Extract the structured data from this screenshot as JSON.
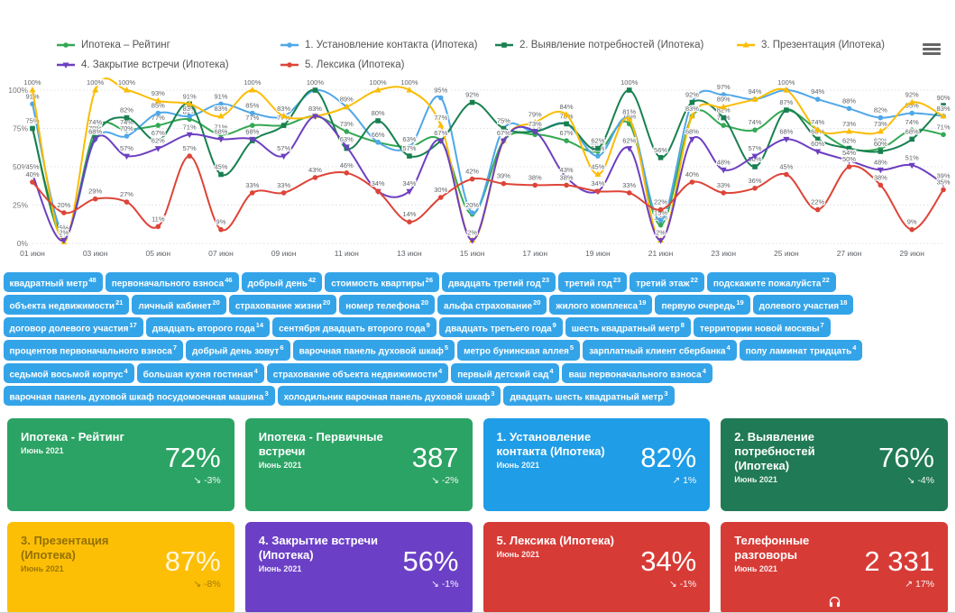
{
  "header": {
    "menu_icon": "hamburger-menu"
  },
  "chart_data": {
    "type": "line",
    "title": "",
    "xlabel": "",
    "ylabel": "",
    "ylim": [
      0,
      100
    ],
    "grid": true,
    "legend_position": "top",
    "y_ticks": [
      "0%",
      "25%",
      "50%",
      "75%",
      "100%"
    ],
    "x": [
      1,
      2,
      3,
      4,
      5,
      6,
      7,
      8,
      9,
      10,
      11,
      12,
      13,
      14,
      15,
      16,
      17,
      18,
      19,
      20,
      21,
      22,
      23,
      24,
      25,
      26,
      27,
      28,
      29,
      30
    ],
    "x_tick_labels": [
      "01 июн",
      "03 июн",
      "05 июн",
      "07 июн",
      "09 июн",
      "11 июн",
      "13 июн",
      "15 июн",
      "17 июн",
      "19 июн",
      "21 июн",
      "23 июн",
      "25 июн",
      "27 июн",
      "29 июн"
    ],
    "series": [
      {
        "id": "rating",
        "name": "Ипотека – Рейтинг",
        "color": "#34a853",
        "marker": "circle",
        "values": [
          75,
          3,
          74,
          74,
          77,
          81,
          71,
          77,
          77,
          83,
          73,
          66,
          63,
          67,
          19,
          67,
          71,
          67,
          60,
          78,
          12,
          83,
          77,
          74,
          87,
          74,
          62,
          62,
          74,
          71
        ]
      },
      {
        "id": "contact",
        "name": "1. Установление контакта (Ипотека)",
        "color": "#4fa7e8",
        "marker": "circle",
        "values": [
          91,
          6,
          68,
          70,
          85,
          83,
          91,
          85,
          83,
          100,
          89,
          66,
          63,
          95,
          20,
          75,
          73,
          78,
          57,
          81,
          15,
          92,
          97,
          94,
          100,
          94,
          88,
          82,
          85,
          83
        ]
      },
      {
        "id": "needs",
        "name": "2. Выявление потребностей (Ипотека)",
        "color": "#188050",
        "marker": "square",
        "values": [
          75,
          5,
          70,
          82,
          67,
          91,
          45,
          67,
          77,
          100,
          62,
          80,
          57,
          67,
          92,
          75,
          73,
          78,
          62,
          100,
          56,
          92,
          82,
          50,
          87,
          68,
          62,
          60,
          68,
          90
        ]
      },
      {
        "id": "presentation",
        "name": "3. Презентация (Ипотека)",
        "color": "#fbbc04",
        "marker": "triangle-up",
        "values": [
          100,
          1,
          100,
          100,
          93,
          91,
          83,
          100,
          83,
          83,
          89,
          100,
          100,
          77,
          2,
          67,
          79,
          84,
          45,
          81,
          2,
          83,
          89,
          94,
          100,
          74,
          73,
          73,
          92,
          83
        ]
      },
      {
        "id": "closing",
        "name": "4. Закрытие встречи (Ипотека)",
        "color": "#6d3fc0",
        "marker": "triangle-down",
        "values": [
          45,
          2,
          68,
          57,
          62,
          71,
          68,
          68,
          57,
          83,
          63,
          34,
          34,
          67,
          2,
          67,
          73,
          43,
          34,
          62,
          2,
          68,
          48,
          57,
          68,
          60,
          54,
          48,
          51,
          39
        ]
      },
      {
        "id": "lexis",
        "name": "5. Лексика (Ипотека)",
        "color": "#dd4437",
        "marker": "circle",
        "values": [
          40,
          20,
          29,
          27,
          11,
          57,
          9,
          33,
          33,
          43,
          46,
          34,
          14,
          30,
          42,
          39,
          38,
          38,
          34,
          33,
          22,
          40,
          33,
          36,
          45,
          22,
          50,
          38,
          9,
          35
        ]
      }
    ]
  },
  "tags": [
    {
      "t": "квадратный метр",
      "n": 48
    },
    {
      "t": "первоначального взноса",
      "n": 46
    },
    {
      "t": "добрый день",
      "n": 42
    },
    {
      "t": "стоимость квартиры",
      "n": 26
    },
    {
      "t": "двадцать третий год",
      "n": 23
    },
    {
      "t": "третий год",
      "n": 23
    },
    {
      "t": "третий этаж",
      "n": 22
    },
    {
      "t": "подскажите пожалуйста",
      "n": 22
    },
    {
      "t": "объекта недвижимости",
      "n": 21
    },
    {
      "t": "личный кабинет",
      "n": 20
    },
    {
      "t": "страхование жизни",
      "n": 20
    },
    {
      "t": "номер телефона",
      "n": 20
    },
    {
      "t": "альфа страхование",
      "n": 20
    },
    {
      "t": "жилого комплекса",
      "n": 19
    },
    {
      "t": "первую очередь",
      "n": 19
    },
    {
      "t": "долевого участия",
      "n": 18
    },
    {
      "t": "договор долевого участия",
      "n": 17
    },
    {
      "t": "двадцать второго года",
      "n": 14
    },
    {
      "t": "сентября двадцать второго года",
      "n": 9
    },
    {
      "t": "двадцать третьего года",
      "n": 9
    },
    {
      "t": "шесть квадратный метр",
      "n": 8
    },
    {
      "t": "территории новой москвы",
      "n": 7
    },
    {
      "t": "процентов первоначального взноса",
      "n": 7
    },
    {
      "t": "добрый день зовут",
      "n": 6
    },
    {
      "t": "варочная панель духовой шкаф",
      "n": 5
    },
    {
      "t": "метро бунинская аллея",
      "n": 5
    },
    {
      "t": "зарплатный клиент сбербанка",
      "n": 4
    },
    {
      "t": "полу ламинат тридцать",
      "n": 4
    },
    {
      "t": "седьмой восьмой корпус",
      "n": 4
    },
    {
      "t": "большая кухня гостиная",
      "n": 4
    },
    {
      "t": "страхование объекта недвижимости",
      "n": 4
    },
    {
      "t": "первый детский сад",
      "n": 4
    },
    {
      "t": "ваш первоначального взноса",
      "n": 4
    },
    {
      "t": "варочная панель духовой шкаф посудомоечная машина",
      "n": 3
    },
    {
      "t": "холодильник варочная панель духовой шкаф",
      "n": 3
    },
    {
      "t": "двадцать шесть квадратный метр",
      "n": 3
    }
  ],
  "cards": [
    {
      "title": "Ипотека - Рейтинг",
      "period": "Июнь 2021",
      "value": "72%",
      "trend": "-3%",
      "trend_dir": "down",
      "color": "#2ba364",
      "style": "normal",
      "icon": ""
    },
    {
      "title": "Ипотека - Первичные встречи",
      "period": "Июнь 2021",
      "value": "387",
      "trend": "-2%",
      "trend_dir": "down",
      "color": "#2ba364",
      "style": "normal",
      "icon": ""
    },
    {
      "title": "1. Установление контакта (Ипотека)",
      "period": "Июнь 2021",
      "value": "82%",
      "trend": "1%",
      "trend_dir": "up",
      "color": "#1f9de6",
      "style": "normal",
      "icon": ""
    },
    {
      "title": "2. Выявление потребностей (Ипотека)",
      "period": "Июнь 2021",
      "value": "76%",
      "trend": "-4%",
      "trend_dir": "down",
      "color": "#207a55",
      "style": "normal",
      "icon": ""
    },
    {
      "title": "3. Презентация (Ипотека)",
      "period": "Июнь 2021",
      "value": "87%",
      "trend": "-8%",
      "trend_dir": "down",
      "color": "#fcbf06",
      "style": "yellow",
      "icon": ""
    },
    {
      "title": "4. Закрытие встречи (Ипотека)",
      "period": "Июнь 2021",
      "value": "56%",
      "trend": "-1%",
      "trend_dir": "down",
      "color": "#6b40c6",
      "style": "normal",
      "icon": ""
    },
    {
      "title": "5. Лексика (Ипотека)",
      "period": "Июнь 2021",
      "value": "34%",
      "trend": "-1%",
      "trend_dir": "down",
      "color": "#d73b36",
      "style": "normal",
      "icon": ""
    },
    {
      "title": "Телефонные разговоры",
      "period": "Июнь 2021",
      "value": "2 331",
      "trend": "17%",
      "trend_dir": "up",
      "color": "#d73b36",
      "style": "normal",
      "icon": "headphones"
    }
  ],
  "trend_arrows": {
    "up": "↗",
    "down": "↘"
  }
}
